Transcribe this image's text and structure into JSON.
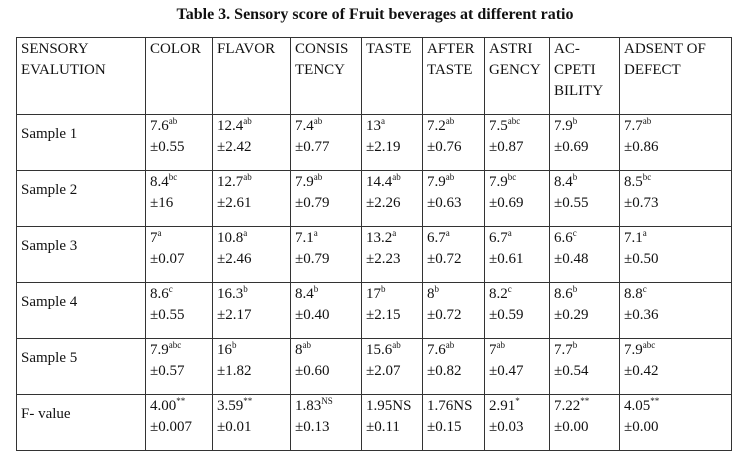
{
  "title": "Table 3. Sensory score of  Fruit beverages at different ratio",
  "headers": [
    [
      "SENSORY",
      "EVALUTION"
    ],
    [
      "COLOR"
    ],
    [
      "FLAVOR"
    ],
    [
      "CONSIS",
      "TENCY"
    ],
    [
      "TASTE"
    ],
    [
      "AFTER",
      "TASTE"
    ],
    [
      "ASTRI",
      "GENCY"
    ],
    [
      "AC-",
      "CPETI",
      "BILITY"
    ],
    [
      "ADSENT OF",
      "DEFECT"
    ]
  ],
  "rows": [
    {
      "label": "Sample 1",
      "cells": [
        {
          "mean": "7.6",
          "sup": "ab",
          "sd": "±0.55"
        },
        {
          "mean": "12.4",
          "sup": "ab",
          "sd": "±2.42"
        },
        {
          "mean": "7.4",
          "sup": "ab",
          "sd": "±0.77"
        },
        {
          "mean": "13",
          "sup": "a",
          "sd": "±2.19"
        },
        {
          "mean": "7.2",
          "sup": "ab",
          "sd": "±0.76"
        },
        {
          "mean": "7.5",
          "sup": "abc",
          "sd": "±0.87"
        },
        {
          "mean": "7.9",
          "sup": "b",
          "sd": "±0.69"
        },
        {
          "mean": "7.7",
          "sup": "ab",
          "sd": "±0.86"
        }
      ]
    },
    {
      "label": "Sample 2",
      "cells": [
        {
          "mean": "8.4",
          "sup": "bc",
          "sd": "±16"
        },
        {
          "mean": "12.7",
          "sup": "ab",
          "sd": "±2.61"
        },
        {
          "mean": "7.9",
          "sup": "ab",
          "sd": "±0.79"
        },
        {
          "mean": "14.4",
          "sup": "ab",
          "sd": "±2.26"
        },
        {
          "mean": "7.9",
          "sup": "ab",
          "sd": "±0.63"
        },
        {
          "mean": "7.9",
          "sup": "bc",
          "sd": "±0.69"
        },
        {
          "mean": "8.4",
          "sup": "b",
          "sd": "±0.55"
        },
        {
          "mean": "8.5",
          "sup": "bc",
          "sd": "±0.73"
        }
      ]
    },
    {
      "label": "Sample 3",
      "cells": [
        {
          "mean": "7",
          "sup": "a",
          "sd": "±0.07"
        },
        {
          "mean": "10.8",
          "sup": "a",
          "sd": "±2.46"
        },
        {
          "mean": "7.1",
          "sup": "a",
          "sd": "±0.79"
        },
        {
          "mean": "13.2",
          "sup": "a",
          "sd": "±2.23"
        },
        {
          "mean": "6.7",
          "sup": "a",
          "sd": "±0.72"
        },
        {
          "mean": "6.7",
          "sup": "a",
          "sd": "±0.61"
        },
        {
          "mean": "6.6",
          "sup": "c",
          "sd": "±0.48"
        },
        {
          "mean": "7.1",
          "sup": "a",
          "sd": "±0.50"
        }
      ]
    },
    {
      "label": "Sample 4",
      "cells": [
        {
          "mean": "8.6",
          "sup": "c",
          "sd": "±0.55"
        },
        {
          "mean": "16.3",
          "sup": "b",
          "sd": "±2.17"
        },
        {
          "mean": "8.4",
          "sup": "b",
          "sd": "±0.40"
        },
        {
          "mean": "17",
          "sup": "b",
          "sd": "±2.15"
        },
        {
          "mean": "8",
          "sup": "b",
          "sd": "±0.72"
        },
        {
          "mean": "8.2",
          "sup": "c",
          "sd": "±0.59"
        },
        {
          "mean": "8.6",
          "sup": "b",
          "sd": "±0.29"
        },
        {
          "mean": "8.8",
          "sup": "c",
          "sd": "±0.36"
        }
      ]
    },
    {
      "label": "Sample 5",
      "cells": [
        {
          "mean": "7.9",
          "sup": "abc",
          "sd": "±0.57"
        },
        {
          "mean": "16",
          "sup": "b",
          "sd": "±1.82"
        },
        {
          "mean": "8",
          "sup": "ab",
          "sd": "±0.60"
        },
        {
          "mean": "15.6",
          "sup": "ab",
          "sd": "±2.07"
        },
        {
          "mean": "7.6",
          "sup": "ab",
          "sd": "±0.82"
        },
        {
          "mean": "7",
          "sup": "ab",
          "sd": "±0.47"
        },
        {
          "mean": "7.7",
          "sup": "b",
          "sd": "±0.54"
        },
        {
          "mean": "7.9",
          "sup": "abc",
          "sd": "±0.42"
        }
      ]
    },
    {
      "label": "F- value",
      "cells": [
        {
          "mean": "4.00",
          "sup": "**",
          "sd": "±0.007"
        },
        {
          "mean": "3.59",
          "sup": "**",
          "sd": "±0.01"
        },
        {
          "mean": "1.83",
          "sup": "NS",
          "sd": "±0.13"
        },
        {
          "mean": "1.95NS",
          "sup": "",
          "sd": "±0.11"
        },
        {
          "mean": "1.76NS",
          "sup": "",
          "sd": "±0.15"
        },
        {
          "mean": "2.91",
          "sup": "*",
          "sd": "±0.03"
        },
        {
          "mean": "7.22",
          "sup": "**",
          "sd": "±0.00"
        },
        {
          "mean": "4.05",
          "sup": "**",
          "sd": "±0.00"
        }
      ]
    }
  ]
}
